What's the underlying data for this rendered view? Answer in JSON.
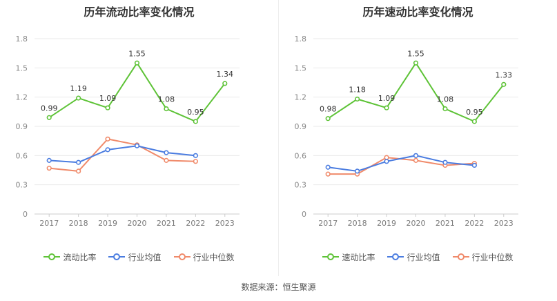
{
  "chart_data": [
    {
      "type": "line",
      "title": "历年流动比率变化情况",
      "categories": [
        "2017",
        "2018",
        "2019",
        "2020",
        "2021",
        "2022",
        "2023"
      ],
      "yticks": [
        "0",
        "0.3",
        "0.6",
        "0.9",
        "1.2",
        "1.5",
        "1.8"
      ],
      "ylim": [
        0,
        1.8
      ],
      "grid": true,
      "legend_position": "bottom",
      "series": [
        {
          "name": "流动比率",
          "color": "#5ec337",
          "labels": true,
          "values": [
            0.99,
            1.19,
            1.09,
            1.55,
            1.08,
            0.95,
            1.34
          ]
        },
        {
          "name": "行业均值",
          "color": "#4a7ce0",
          "labels": false,
          "values": [
            0.55,
            0.53,
            0.66,
            0.7,
            0.63,
            0.6,
            null
          ]
        },
        {
          "name": "行业中位数",
          "color": "#f08a6a",
          "labels": false,
          "values": [
            0.47,
            0.44,
            0.77,
            0.71,
            0.55,
            0.54,
            null
          ]
        }
      ]
    },
    {
      "type": "line",
      "title": "历年速动比率变化情况",
      "categories": [
        "2017",
        "2018",
        "2019",
        "2020",
        "2021",
        "2022",
        "2023"
      ],
      "yticks": [
        "0",
        "0.3",
        "0.6",
        "0.9",
        "1.2",
        "1.5",
        "1.8"
      ],
      "ylim": [
        0,
        1.8
      ],
      "grid": true,
      "legend_position": "bottom",
      "series": [
        {
          "name": "速动比率",
          "color": "#5ec337",
          "labels": true,
          "values": [
            0.98,
            1.18,
            1.09,
            1.55,
            1.08,
            0.95,
            1.33
          ]
        },
        {
          "name": "行业均值",
          "color": "#4a7ce0",
          "labels": false,
          "values": [
            0.48,
            0.44,
            0.54,
            0.6,
            0.53,
            0.5,
            null
          ]
        },
        {
          "name": "行业中位数",
          "color": "#f08a6a",
          "labels": false,
          "values": [
            0.41,
            0.41,
            0.58,
            0.55,
            0.5,
            0.52,
            null
          ]
        }
      ]
    }
  ],
  "footer": {
    "source_text": "数据来源：恒生聚源"
  }
}
